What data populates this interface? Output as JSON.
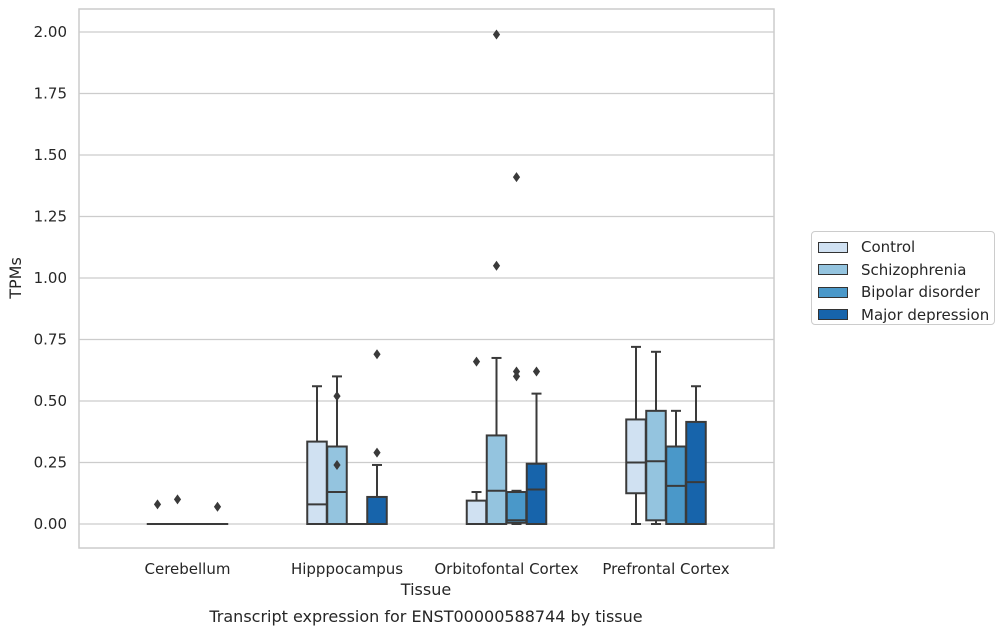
{
  "chart_data": {
    "type": "box",
    "title": "Transcript expression for ENST00000588744 by tissue",
    "xlabel": "Tissue",
    "ylabel": "TPMs",
    "ylim": [
      -0.1,
      2.1
    ],
    "yticks": [
      "0.00",
      "0.25",
      "0.50",
      "0.75",
      "1.00",
      "1.25",
      "1.50",
      "1.75",
      "2.00"
    ],
    "grid": true,
    "legend_position": "right",
    "categories": [
      "Cerebellum",
      "Hipppocampus",
      "Orbitofontal Cortex",
      "Prefrontal Cortex"
    ],
    "series": [
      {
        "name": "Control",
        "color": "#d0e1f2",
        "boxes": [
          {
            "q1": 0.0,
            "median": 0.0,
            "q3": 0.0,
            "whisker_low": 0.0,
            "whisker_high": 0.0,
            "outliers": [
              0.08
            ]
          },
          {
            "q1": 0.0,
            "median": 0.08,
            "q3": 0.335,
            "whisker_low": 0.0,
            "whisker_high": 0.56,
            "outliers": []
          },
          {
            "q1": 0.0,
            "median": 0.0,
            "q3": 0.095,
            "whisker_low": 0.0,
            "whisker_high": 0.13,
            "outliers": [
              0.66
            ]
          },
          {
            "q1": 0.125,
            "median": 0.25,
            "q3": 0.425,
            "whisker_low": 0.0,
            "whisker_high": 0.72,
            "outliers": []
          }
        ]
      },
      {
        "name": "Schizophrenia",
        "color": "#94c4df",
        "boxes": [
          {
            "q1": 0.0,
            "median": 0.0,
            "q3": 0.0,
            "whisker_low": 0.0,
            "whisker_high": 0.0,
            "outliers": [
              0.1
            ]
          },
          {
            "q1": 0.0,
            "median": 0.13,
            "q3": 0.315,
            "whisker_low": 0.0,
            "whisker_high": 0.6,
            "outliers": [
              0.52,
              0.24
            ]
          },
          {
            "q1": 0.0,
            "median": 0.135,
            "q3": 0.36,
            "whisker_low": 0.0,
            "whisker_high": 0.675,
            "outliers": [
              1.99,
              1.05
            ]
          },
          {
            "q1": 0.015,
            "median": 0.255,
            "q3": 0.46,
            "whisker_low": 0.0,
            "whisker_high": 0.7,
            "outliers": []
          }
        ]
      },
      {
        "name": "Bipolar disorder",
        "color": "#4a98c9",
        "boxes": [
          {
            "q1": 0.0,
            "median": 0.0,
            "q3": 0.0,
            "whisker_low": 0.0,
            "whisker_high": 0.0,
            "outliers": []
          },
          {
            "q1": 0.0,
            "median": 0.0,
            "q3": 0.0,
            "whisker_low": 0.0,
            "whisker_high": 0.0,
            "outliers": []
          },
          {
            "q1": 0.005,
            "median": 0.015,
            "q3": 0.13,
            "whisker_low": 0.0,
            "whisker_high": 0.135,
            "outliers": [
              1.41,
              0.62,
              0.6
            ]
          },
          {
            "q1": 0.0,
            "median": 0.155,
            "q3": 0.315,
            "whisker_low": 0.0,
            "whisker_high": 0.46,
            "outliers": []
          }
        ]
      },
      {
        "name": "Major depression",
        "color": "#1764ab",
        "boxes": [
          {
            "q1": 0.0,
            "median": 0.0,
            "q3": 0.0,
            "whisker_low": 0.0,
            "whisker_high": 0.0,
            "outliers": [
              0.07
            ]
          },
          {
            "q1": 0.0,
            "median": 0.0,
            "q3": 0.11,
            "whisker_low": 0.0,
            "whisker_high": 0.24,
            "outliers": [
              0.69,
              0.29
            ]
          },
          {
            "q1": 0.0,
            "median": 0.14,
            "q3": 0.245,
            "whisker_low": 0.0,
            "whisker_high": 0.53,
            "outliers": [
              0.62
            ]
          },
          {
            "q1": 0.0,
            "median": 0.17,
            "q3": 0.415,
            "whisker_low": 0.0,
            "whisker_high": 0.56,
            "outliers": []
          }
        ]
      }
    ]
  }
}
